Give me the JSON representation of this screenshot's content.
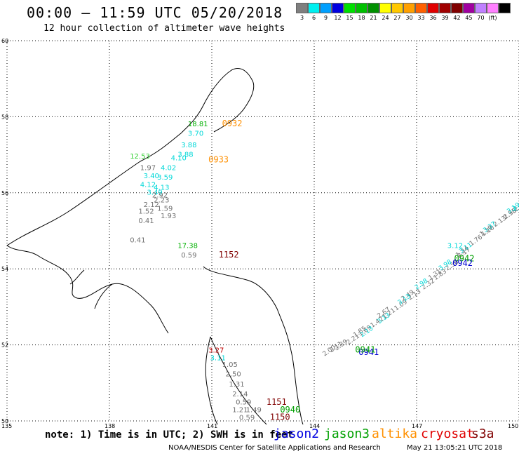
{
  "header": {
    "title": "00:00 – 11:59 UTC 05/20/2018",
    "subtitle": "12 hour collection of altimeter wave heights"
  },
  "legend": {
    "colors": [
      "#7f7f7f",
      "#00f0f0",
      "#00a0ff",
      "#0000e0",
      "#00e000",
      "#00c000",
      "#009000",
      "#ffff00",
      "#ffc800",
      "#ffa000",
      "#ff6000",
      "#e00000",
      "#a00000",
      "#800000",
      "#a000a0",
      "#c080ff",
      "#ff80ff",
      "#000000"
    ],
    "labels": [
      "3",
      "6",
      "9",
      "12",
      "15",
      "18",
      "21",
      "24",
      "27",
      "30",
      "33",
      "36",
      "39",
      "42",
      "45",
      "70",
      "(ft)"
    ]
  },
  "map": {
    "lat_labels": [
      "60",
      "58",
      "56",
      "54",
      "52",
      "50"
    ],
    "lon_labels": [
      "135",
      "138",
      "141",
      "144",
      "147",
      "150"
    ],
    "lon_range": [
      135,
      150
    ],
    "lat_range": [
      50,
      60
    ],
    "observations": [
      {
        "text": "18.81",
        "lon": 140.3,
        "lat": 57.75,
        "color": "#00b000"
      },
      {
        "text": "0932",
        "lon": 141.3,
        "lat": 57.75,
        "color": "#ff9000"
      },
      {
        "text": "3.70",
        "lon": 140.3,
        "lat": 57.5,
        "color": "#00d8d8"
      },
      {
        "text": "3.88",
        "lon": 140.1,
        "lat": 57.2,
        "color": "#00d8d8"
      },
      {
        "text": "3.88",
        "lon": 140.0,
        "lat": 56.95,
        "color": "#00d8d8"
      },
      {
        "text": "12.53",
        "lon": 138.6,
        "lat": 56.9,
        "color": "#30d030"
      },
      {
        "text": "4.10",
        "lon": 139.8,
        "lat": 56.85,
        "color": "#00d8d8"
      },
      {
        "text": "0933",
        "lon": 140.9,
        "lat": 56.8,
        "color": "#ff9000"
      },
      {
        "text": "1.97",
        "lon": 138.9,
        "lat": 56.6,
        "color": "#707070"
      },
      {
        "text": "4.02",
        "lon": 139.5,
        "lat": 56.6,
        "color": "#00d8d8"
      },
      {
        "text": "3.40",
        "lon": 139.0,
        "lat": 56.38,
        "color": "#00d8d8"
      },
      {
        "text": "3.59",
        "lon": 139.4,
        "lat": 56.35,
        "color": "#00d8d8"
      },
      {
        "text": "4.12",
        "lon": 138.9,
        "lat": 56.15,
        "color": "#00d8d8"
      },
      {
        "text": "4.13",
        "lon": 139.3,
        "lat": 56.08,
        "color": "#00d8d8"
      },
      {
        "text": "3.49",
        "lon": 139.1,
        "lat": 55.95,
        "color": "#00d8d8"
      },
      {
        "text": "2.92",
        "lon": 139.25,
        "lat": 55.88,
        "color": "#707070"
      },
      {
        "text": "2.23",
        "lon": 139.3,
        "lat": 55.75,
        "color": "#707070"
      },
      {
        "text": "2.12",
        "lon": 139.0,
        "lat": 55.63,
        "color": "#707070"
      },
      {
        "text": "1.59",
        "lon": 139.4,
        "lat": 55.53,
        "color": "#707070"
      },
      {
        "text": "1.52",
        "lon": 138.85,
        "lat": 55.45,
        "color": "#707070"
      },
      {
        "text": "1.93",
        "lon": 139.5,
        "lat": 55.33,
        "color": "#707070"
      },
      {
        "text": "0.41",
        "lon": 138.85,
        "lat": 55.2,
        "color": "#707070"
      },
      {
        "text": "0.41",
        "lon": 138.6,
        "lat": 54.7,
        "color": "#707070"
      },
      {
        "text": "17.38",
        "lon": 140.0,
        "lat": 54.55,
        "color": "#00b000"
      },
      {
        "text": "0.59",
        "lon": 140.1,
        "lat": 54.3,
        "color": "#707070"
      },
      {
        "text": "1152",
        "lon": 141.2,
        "lat": 54.3,
        "color": "#800000"
      },
      {
        "text": "3.27",
        "lon": 140.9,
        "lat": 51.8,
        "color": "#c00000"
      },
      {
        "text": "3.11",
        "lon": 140.95,
        "lat": 51.6,
        "color": "#00d8d8"
      },
      {
        "text": "1.05",
        "lon": 141.3,
        "lat": 51.42,
        "color": "#707070"
      },
      {
        "text": "2.50",
        "lon": 141.4,
        "lat": 51.17,
        "color": "#707070"
      },
      {
        "text": "1.31",
        "lon": 141.5,
        "lat": 50.9,
        "color": "#707070"
      },
      {
        "text": "2.14",
        "lon": 141.6,
        "lat": 50.65,
        "color": "#707070"
      },
      {
        "text": "0.59",
        "lon": 141.7,
        "lat": 50.43,
        "color": "#707070"
      },
      {
        "text": "1151",
        "lon": 142.6,
        "lat": 50.42,
        "color": "#800000"
      },
      {
        "text": "1.21",
        "lon": 141.6,
        "lat": 50.23,
        "color": "#707070"
      },
      {
        "text": "1.49",
        "lon": 142.0,
        "lat": 50.23,
        "color": "#707070"
      },
      {
        "text": "0940",
        "lon": 143.0,
        "lat": 50.22,
        "color": "#00a000"
      },
      {
        "text": "0.59",
        "lon": 141.8,
        "lat": 50.03,
        "color": "#707070"
      },
      {
        "text": "1150",
        "lon": 142.7,
        "lat": 50.03,
        "color": "#800000"
      },
      {
        "text": "0941",
        "lon": 145.3,
        "lat": 51.73,
        "color": "#0000d0"
      },
      {
        "text": "0941",
        "lon": 145.2,
        "lat": 51.8,
        "color": "#00a000"
      },
      {
        "text": "0942",
        "lon": 148.1,
        "lat": 54.2,
        "color": "#00a000"
      },
      {
        "text": "0942",
        "lon": 148.05,
        "lat": 54.08,
        "color": "#0000d0"
      },
      {
        "text": "3.12",
        "lon": 147.9,
        "lat": 54.55,
        "color": "#00d8d8"
      },
      {
        "text": "3.19",
        "lon": 149.8,
        "lat": 55.52,
        "color": "#00d8d8"
      }
    ],
    "tracks": [
      {
        "color": "#707070",
        "points": [
          [
            144.3,
            51.7
          ],
          [
            145.0,
            52.0
          ],
          [
            145.7,
            52.45
          ],
          [
            146.4,
            52.9
          ],
          [
            147.2,
            53.45
          ],
          [
            147.9,
            53.95
          ],
          [
            148.6,
            54.6
          ],
          [
            149.3,
            55.1
          ],
          [
            149.9,
            55.5
          ]
        ],
        "labels": [
          "2.00",
          "2.39",
          "2.21",
          "1.69",
          "1.42",
          "1.21",
          "1.09",
          "2.13",
          "2.32",
          "1.83",
          "2.56",
          "2.17",
          "1.76",
          "1.10",
          "2.13",
          "1.96",
          "2.41"
        ]
      },
      {
        "color": "#707070",
        "points": [
          [
            144.5,
            51.8
          ],
          [
            145.2,
            52.2
          ],
          [
            145.9,
            52.7
          ],
          [
            146.6,
            53.15
          ],
          [
            147.4,
            53.7
          ],
          [
            148.2,
            54.3
          ],
          [
            148.9,
            54.85
          ],
          [
            149.6,
            55.3
          ]
        ],
        "labels": [
          "2.11",
          "1.85",
          "2.67",
          "2.49",
          "1.31",
          "1.24",
          "1.19",
          "2.35"
        ]
      },
      {
        "color": "#00d8d8",
        "points": [
          [
            145.4,
            52.2
          ],
          [
            145.9,
            52.55
          ],
          [
            146.5,
            53.05
          ],
          [
            147.0,
            53.45
          ],
          [
            147.7,
            53.95
          ],
          [
            148.3,
            54.4
          ],
          [
            149.0,
            54.95
          ],
          [
            149.7,
            55.45
          ]
        ],
        "labels": [
          "2.13",
          "3.13",
          "3.13",
          "2.98",
          "3.98",
          "3.11",
          "3.37",
          "3.19"
        ]
      }
    ]
  },
  "note": "note: 1) Time is in UTC; 2) SWH is in feet",
  "satellites": [
    {
      "name": "jason2",
      "color": "#0000e0"
    },
    {
      "name": "jason3",
      "color": "#00a000"
    },
    {
      "name": "altika",
      "color": "#ff9000"
    },
    {
      "name": "cryosat",
      "color": "#e00000"
    },
    {
      "name": "s3a",
      "color": "#800000"
    }
  ],
  "footer": {
    "org": "NOAA/NESDIS Center for Satellite Applications and Research",
    "date": "May 21 13:05:21 UTC 2018"
  }
}
